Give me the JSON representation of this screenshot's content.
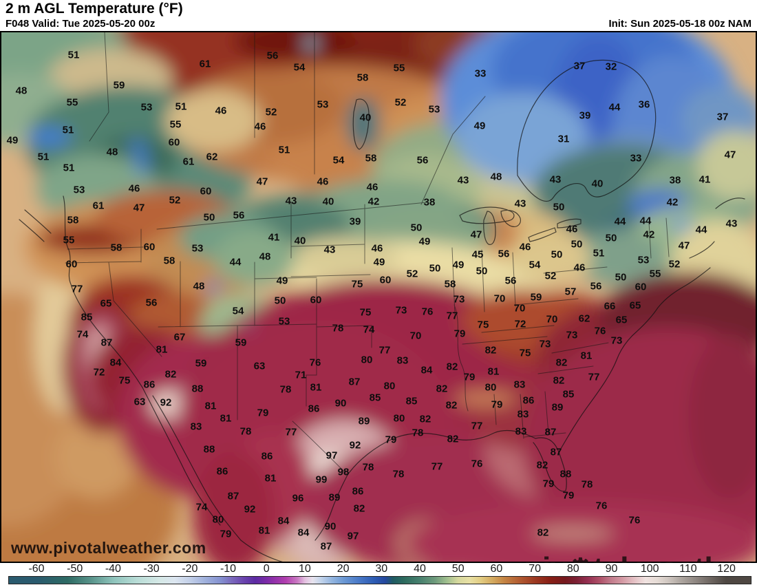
{
  "header": {
    "title": "2 m AGL Temperature (°F)",
    "valid": "F048 Valid: Tue 2025-05-20 00z",
    "init": "Init: Sun 2025-05-18 00z NAM"
  },
  "watermarks": {
    "site": "www.pivotalweather.com",
    "brand_left": "piv",
    "brand_right": "tal weather",
    "gear_glyph": "⚙"
  },
  "colorbar": {
    "units": "°F",
    "ticks": [
      -60,
      -50,
      -40,
      -30,
      -20,
      -10,
      0,
      10,
      20,
      30,
      40,
      50,
      60,
      70,
      80,
      90,
      100,
      110,
      120
    ],
    "stops": [
      {
        "t": -60,
        "c": "#2a5a6e"
      },
      {
        "t": -52,
        "c": "#2e6b64"
      },
      {
        "t": -46,
        "c": "#58938a"
      },
      {
        "t": -40,
        "c": "#8fc4bc"
      },
      {
        "t": -34,
        "c": "#b8dcd6"
      },
      {
        "t": -28,
        "c": "#d5e8e6"
      },
      {
        "t": -24,
        "c": "#dce6f0"
      },
      {
        "t": -20,
        "c": "#c2cfe8"
      },
      {
        "t": -16,
        "c": "#9fb0dc"
      },
      {
        "t": -12,
        "c": "#8491d0"
      },
      {
        "t": -9,
        "c": "#7a68bc"
      },
      {
        "t": -6,
        "c": "#6a44ae"
      },
      {
        "t": -3,
        "c": "#5c2ba2"
      },
      {
        "t": 0,
        "c": "#7c2ba8"
      },
      {
        "t": 2,
        "c": "#9232aa"
      },
      {
        "t": 5,
        "c": "#b13eae"
      },
      {
        "t": 8,
        "c": "#c979c2"
      },
      {
        "t": 10,
        "c": "#e3c0e0"
      },
      {
        "t": 12,
        "c": "#e8e4ee"
      },
      {
        "t": 14,
        "c": "#c6d6ec"
      },
      {
        "t": 17,
        "c": "#94b6e0"
      },
      {
        "t": 20,
        "c": "#6d9ad4"
      },
      {
        "t": 24,
        "c": "#4a7ac8"
      },
      {
        "t": 28,
        "c": "#2d5cb4"
      },
      {
        "t": 31,
        "c": "#24489e"
      },
      {
        "t": 33,
        "c": "#1f5a62"
      },
      {
        "t": 36,
        "c": "#2d6b5e"
      },
      {
        "t": 40,
        "c": "#47806e"
      },
      {
        "t": 44,
        "c": "#6e9a7c"
      },
      {
        "t": 47,
        "c": "#9ebe8e"
      },
      {
        "t": 50,
        "c": "#d6d89e"
      },
      {
        "t": 53,
        "c": "#e8e0a4"
      },
      {
        "t": 56,
        "c": "#e2cc82"
      },
      {
        "t": 59,
        "c": "#d4aa60"
      },
      {
        "t": 62,
        "c": "#c58544"
      },
      {
        "t": 66,
        "c": "#b25c32"
      },
      {
        "t": 70,
        "c": "#9d3a22"
      },
      {
        "t": 74,
        "c": "#881f16"
      },
      {
        "t": 78,
        "c": "#75191e"
      },
      {
        "t": 81,
        "c": "#7c2135"
      },
      {
        "t": 84,
        "c": "#953052"
      },
      {
        "t": 87,
        "c": "#ae5068"
      },
      {
        "t": 90,
        "c": "#c27c8c"
      },
      {
        "t": 93,
        "c": "#d49aa4"
      },
      {
        "t": 96,
        "c": "#e4c0c4"
      },
      {
        "t": 99,
        "c": "#f0e2e0"
      },
      {
        "t": 102,
        "c": "#e6dcd6"
      },
      {
        "t": 105,
        "c": "#cfc6c0"
      },
      {
        "t": 108,
        "c": "#b0a8a2"
      },
      {
        "t": 112,
        "c": "#908883"
      },
      {
        "t": 116,
        "c": "#6e6661"
      },
      {
        "t": 120,
        "c": "#4e4742"
      }
    ]
  },
  "map": {
    "region": "North America",
    "labels": [
      [
        51,
        107,
        80
      ],
      [
        56,
        396,
        81
      ],
      [
        61,
        298,
        93
      ],
      [
        37,
        842,
        96
      ],
      [
        32,
        888,
        97
      ],
      [
        54,
        435,
        98
      ],
      [
        55,
        580,
        99
      ],
      [
        33,
        698,
        107
      ],
      [
        58,
        527,
        113
      ],
      [
        59,
        173,
        124
      ],
      [
        48,
        31,
        132
      ],
      [
        55,
        105,
        149
      ],
      [
        52,
        582,
        149
      ],
      [
        53,
        469,
        152
      ],
      [
        36,
        936,
        152
      ],
      [
        51,
        263,
        155
      ],
      [
        53,
        213,
        156
      ],
      [
        44,
        893,
        156
      ],
      [
        53,
        631,
        159
      ],
      [
        46,
        321,
        161
      ],
      [
        52,
        394,
        163
      ],
      [
        39,
        850,
        168
      ],
      [
        37,
        1050,
        170
      ],
      [
        40,
        531,
        171
      ],
      [
        55,
        255,
        181
      ],
      [
        46,
        378,
        184
      ],
      [
        49,
        697,
        183
      ],
      [
        51,
        99,
        189
      ],
      [
        31,
        819,
        202
      ],
      [
        49,
        18,
        204
      ],
      [
        60,
        253,
        207
      ],
      [
        51,
        413,
        218
      ],
      [
        48,
        163,
        221
      ],
      [
        47,
        1061,
        225
      ],
      [
        51,
        63,
        228
      ],
      [
        62,
        308,
        228
      ],
      [
        33,
        924,
        230
      ],
      [
        61,
        274,
        235
      ],
      [
        58,
        539,
        230
      ],
      [
        54,
        492,
        233
      ],
      [
        56,
        614,
        233
      ],
      [
        51,
        100,
        244
      ],
      [
        43,
        673,
        262
      ],
      [
        48,
        721,
        257
      ],
      [
        41,
        1024,
        261
      ],
      [
        38,
        981,
        262
      ],
      [
        43,
        807,
        261
      ],
      [
        47,
        381,
        264
      ],
      [
        46,
        469,
        264
      ],
      [
        40,
        868,
        267
      ],
      [
        46,
        541,
        272
      ],
      [
        46,
        195,
        274
      ],
      [
        53,
        115,
        276
      ],
      [
        60,
        299,
        278
      ],
      [
        52,
        254,
        291
      ],
      [
        43,
        423,
        292
      ],
      [
        40,
        477,
        293
      ],
      [
        42,
        543,
        293
      ],
      [
        38,
        624,
        294
      ],
      [
        42,
        977,
        294
      ],
      [
        43,
        756,
        296
      ],
      [
        61,
        143,
        299
      ],
      [
        50,
        812,
        301
      ],
      [
        47,
        202,
        302
      ],
      [
        56,
        347,
        313
      ],
      [
        50,
        304,
        316
      ],
      [
        58,
        106,
        320
      ],
      [
        39,
        516,
        322
      ],
      [
        44,
        901,
        322
      ],
      [
        44,
        938,
        321
      ],
      [
        43,
        1063,
        325
      ],
      [
        50,
        605,
        331
      ],
      [
        46,
        831,
        333
      ],
      [
        44,
        1019,
        334
      ],
      [
        47,
        692,
        341
      ],
      [
        42,
        943,
        341
      ],
      [
        41,
        398,
        345
      ],
      [
        50,
        888,
        346
      ],
      [
        40,
        436,
        350
      ],
      [
        55,
        100,
        349
      ],
      [
        49,
        617,
        351
      ],
      [
        50,
        838,
        355
      ],
      [
        46,
        763,
        359
      ],
      [
        47,
        994,
        357
      ],
      [
        60,
        217,
        359
      ],
      [
        58,
        169,
        360
      ],
      [
        53,
        287,
        361
      ],
      [
        46,
        548,
        361
      ],
      [
        43,
        479,
        363
      ],
      [
        51,
        870,
        368
      ],
      [
        56,
        732,
        369
      ],
      [
        45,
        694,
        370
      ],
      [
        48,
        385,
        373
      ],
      [
        50,
        809,
        370
      ],
      [
        44,
        342,
        381
      ],
      [
        49,
        551,
        381
      ],
      [
        58,
        246,
        379
      ],
      [
        53,
        935,
        378
      ],
      [
        52,
        980,
        384
      ],
      [
        60,
        104,
        384
      ],
      [
        54,
        777,
        385
      ],
      [
        49,
        666,
        385
      ],
      [
        46,
        842,
        389
      ],
      [
        50,
        632,
        390
      ],
      [
        50,
        700,
        394
      ],
      [
        55,
        952,
        398
      ],
      [
        52,
        599,
        398
      ],
      [
        52,
        800,
        401
      ],
      [
        50,
        902,
        403
      ],
      [
        60,
        560,
        407
      ],
      [
        49,
        410,
        408
      ],
      [
        56,
        742,
        408
      ],
      [
        58,
        654,
        413
      ],
      [
        75,
        519,
        413
      ],
      [
        48,
        289,
        416
      ],
      [
        56,
        866,
        416
      ],
      [
        60,
        931,
        417
      ],
      [
        77,
        112,
        420
      ],
      [
        57,
        829,
        424
      ],
      [
        59,
        779,
        432
      ],
      [
        73,
        667,
        435
      ],
      [
        70,
        726,
        434
      ],
      [
        50,
        407,
        437
      ],
      [
        60,
        459,
        436
      ],
      [
        65,
        154,
        441
      ],
      [
        56,
        220,
        440
      ],
      [
        66,
        886,
        445
      ],
      [
        65,
        923,
        444
      ],
      [
        70,
        755,
        448
      ],
      [
        73,
        583,
        451
      ],
      [
        54,
        346,
        452
      ],
      [
        75,
        531,
        454
      ],
      [
        76,
        621,
        453
      ],
      [
        77,
        657,
        459
      ],
      [
        85,
        126,
        461
      ],
      [
        62,
        849,
        463
      ],
      [
        70,
        802,
        464
      ],
      [
        65,
        903,
        465
      ],
      [
        53,
        413,
        467
      ],
      [
        72,
        756,
        471
      ],
      [
        75,
        702,
        472
      ],
      [
        78,
        491,
        477
      ],
      [
        74,
        536,
        479
      ],
      [
        76,
        872,
        481
      ],
      [
        79,
        668,
        485
      ],
      [
        74,
        120,
        486
      ],
      [
        73,
        831,
        487
      ],
      [
        70,
        604,
        488
      ],
      [
        67,
        261,
        490
      ],
      [
        73,
        896,
        495
      ],
      [
        87,
        155,
        498
      ],
      [
        59,
        350,
        498
      ],
      [
        73,
        792,
        500
      ],
      [
        81,
        235,
        508
      ],
      [
        82,
        713,
        509
      ],
      [
        77,
        559,
        509
      ],
      [
        75,
        763,
        513
      ],
      [
        81,
        852,
        517
      ],
      [
        80,
        533,
        523
      ],
      [
        83,
        585,
        524
      ],
      [
        84,
        168,
        527
      ],
      [
        76,
        458,
        527
      ],
      [
        82,
        816,
        527
      ],
      [
        59,
        292,
        528
      ],
      [
        63,
        377,
        532
      ],
      [
        82,
        657,
        533
      ],
      [
        84,
        620,
        538
      ],
      [
        81,
        717,
        540
      ],
      [
        72,
        144,
        541
      ],
      [
        82,
        248,
        544
      ],
      [
        71,
        437,
        545
      ],
      [
        79,
        682,
        548
      ],
      [
        77,
        863,
        548
      ],
      [
        75,
        181,
        553
      ],
      [
        82,
        812,
        553
      ],
      [
        87,
        515,
        555
      ],
      [
        86,
        217,
        559
      ],
      [
        83,
        755,
        559
      ],
      [
        80,
        566,
        561
      ],
      [
        81,
        459,
        563
      ],
      [
        80,
        713,
        563
      ],
      [
        88,
        287,
        565
      ],
      [
        82,
        642,
        565
      ],
      [
        78,
        415,
        566
      ],
      [
        85,
        826,
        573
      ],
      [
        85,
        545,
        578
      ],
      [
        86,
        768,
        582
      ],
      [
        63,
        203,
        584
      ],
      [
        92,
        241,
        585
      ],
      [
        85,
        598,
        583
      ],
      [
        90,
        495,
        586
      ],
      [
        79,
        722,
        588
      ],
      [
        82,
        656,
        589
      ],
      [
        81,
        306,
        590
      ],
      [
        89,
        810,
        592
      ],
      [
        86,
        456,
        594
      ],
      [
        79,
        382,
        600
      ],
      [
        83,
        760,
        602
      ],
      [
        81,
        328,
        608
      ],
      [
        80,
        580,
        608
      ],
      [
        82,
        618,
        609
      ],
      [
        89,
        529,
        612
      ],
      [
        77,
        693,
        619
      ],
      [
        83,
        285,
        620
      ],
      [
        78,
        357,
        627
      ],
      [
        83,
        757,
        627
      ],
      [
        77,
        423,
        628
      ],
      [
        87,
        800,
        628
      ],
      [
        78,
        607,
        629
      ],
      [
        82,
        658,
        638
      ],
      [
        79,
        568,
        639
      ],
      [
        92,
        516,
        647
      ],
      [
        88,
        304,
        653
      ],
      [
        87,
        808,
        657
      ],
      [
        86,
        388,
        663
      ],
      [
        97,
        482,
        662
      ],
      [
        76,
        693,
        674
      ],
      [
        82,
        788,
        676
      ],
      [
        77,
        635,
        678
      ],
      [
        78,
        535,
        679
      ],
      [
        86,
        323,
        685
      ],
      [
        98,
        499,
        686
      ],
      [
        88,
        822,
        689
      ],
      [
        78,
        579,
        689
      ],
      [
        81,
        393,
        695
      ],
      [
        99,
        467,
        697
      ],
      [
        79,
        797,
        703
      ],
      [
        78,
        853,
        704
      ],
      [
        86,
        520,
        714
      ],
      [
        87,
        339,
        721
      ],
      [
        89,
        486,
        723
      ],
      [
        79,
        826,
        720
      ],
      [
        96,
        433,
        724
      ],
      [
        74,
        293,
        737
      ],
      [
        92,
        363,
        740
      ],
      [
        76,
        874,
        735
      ],
      [
        82,
        522,
        739
      ],
      [
        80,
        317,
        755
      ],
      [
        76,
        922,
        756
      ],
      [
        84,
        412,
        757
      ],
      [
        90,
        480,
        765
      ],
      [
        81,
        384,
        771
      ],
      [
        84,
        441,
        774
      ],
      [
        82,
        789,
        774
      ],
      [
        79,
        328,
        776
      ],
      [
        97,
        513,
        779
      ],
      [
        87,
        474,
        794
      ]
    ]
  }
}
